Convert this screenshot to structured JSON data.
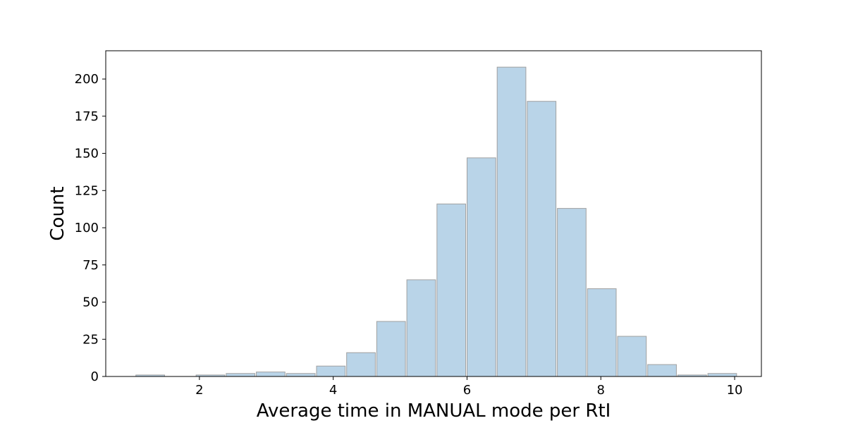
{
  "chart_data": {
    "type": "histogram",
    "xlabel": "Average time in MANUAL mode per RtI",
    "ylabel": "Count",
    "xlim": [
      0.6,
      10.4
    ],
    "ylim": [
      0,
      219
    ],
    "xticks": [
      2,
      4,
      6,
      8,
      10
    ],
    "yticks": [
      0,
      25,
      50,
      75,
      100,
      125,
      150,
      175,
      200
    ],
    "bar_color": "#b9d4e8",
    "edge_color": "#a0a0a0",
    "grid": false,
    "bins": [
      {
        "start": 1.04,
        "end": 1.49,
        "count": 1
      },
      {
        "start": 1.49,
        "end": 1.94,
        "count": 0
      },
      {
        "start": 1.94,
        "end": 2.39,
        "count": 1
      },
      {
        "start": 2.39,
        "end": 2.84,
        "count": 2
      },
      {
        "start": 2.84,
        "end": 3.29,
        "count": 3
      },
      {
        "start": 3.29,
        "end": 3.74,
        "count": 2
      },
      {
        "start": 3.74,
        "end": 4.19,
        "count": 7
      },
      {
        "start": 4.19,
        "end": 4.64,
        "count": 16
      },
      {
        "start": 4.64,
        "end": 5.09,
        "count": 37
      },
      {
        "start": 5.09,
        "end": 5.54,
        "count": 65
      },
      {
        "start": 5.54,
        "end": 5.99,
        "count": 116
      },
      {
        "start": 5.99,
        "end": 6.44,
        "count": 147
      },
      {
        "start": 6.44,
        "end": 6.89,
        "count": 208
      },
      {
        "start": 6.89,
        "end": 7.34,
        "count": 185
      },
      {
        "start": 7.34,
        "end": 7.79,
        "count": 113
      },
      {
        "start": 7.79,
        "end": 8.24,
        "count": 59
      },
      {
        "start": 8.24,
        "end": 8.69,
        "count": 27
      },
      {
        "start": 8.69,
        "end": 9.14,
        "count": 8
      },
      {
        "start": 9.14,
        "end": 9.59,
        "count": 1
      },
      {
        "start": 9.59,
        "end": 10.04,
        "count": 2
      }
    ]
  }
}
